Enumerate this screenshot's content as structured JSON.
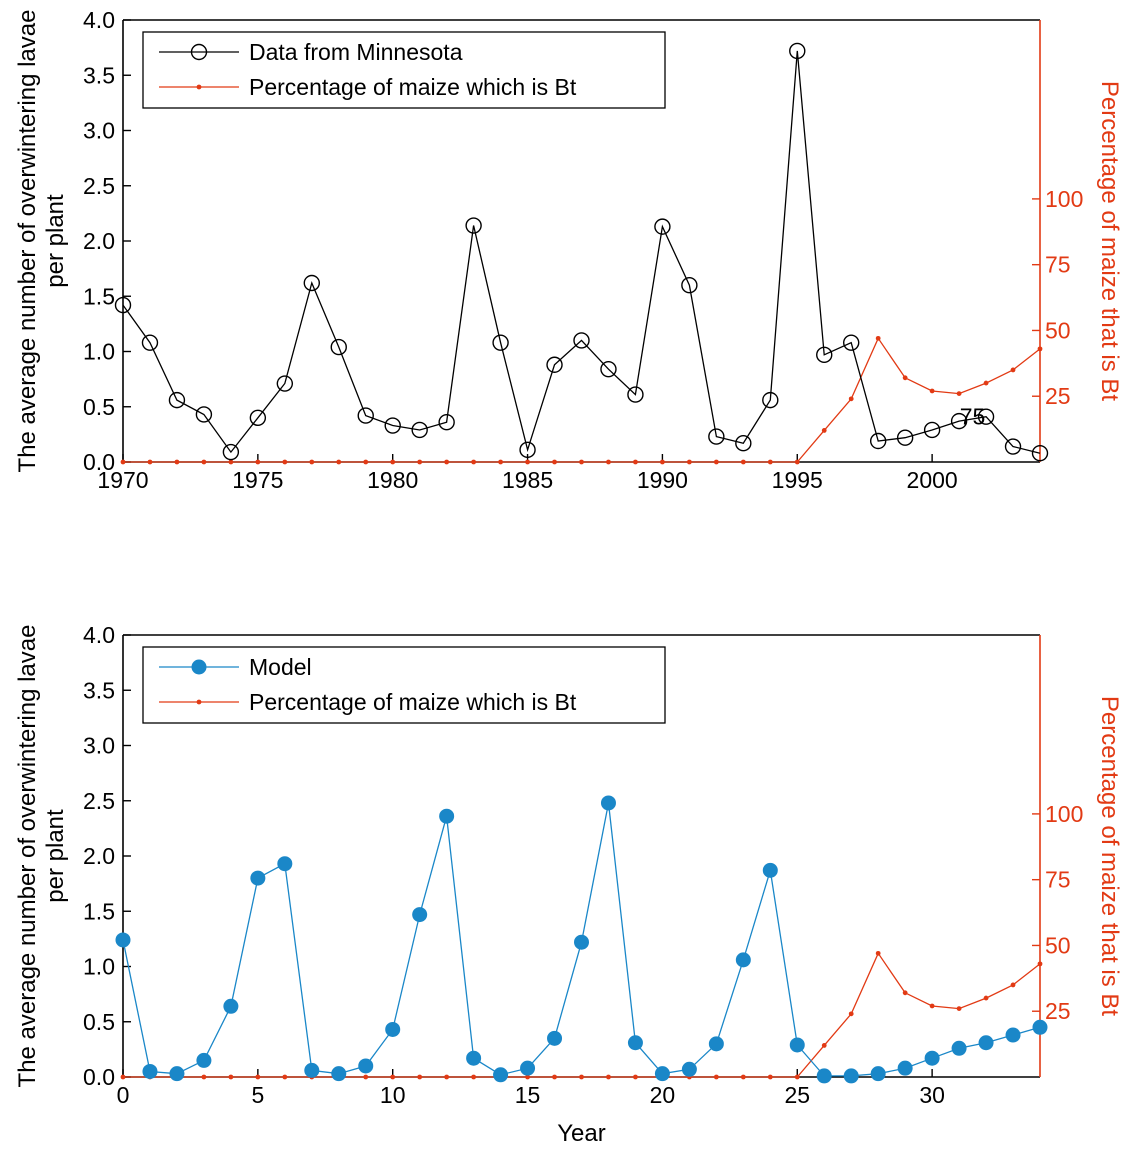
{
  "chart_data": [
    {
      "type": "line",
      "title": "",
      "xlabel": "",
      "ylabel": "The average number of overwintering lavae per plant",
      "y2label": "Percentage of maize that is Bt",
      "xlim": [
        1970,
        2004
      ],
      "ylim": [
        0,
        4
      ],
      "y2lim": [
        0,
        168
      ],
      "x_ticks": [
        1970,
        1975,
        1980,
        1985,
        1990,
        1995,
        2000
      ],
      "y_ticks": [
        "0.0",
        "0.5",
        "1.0",
        "1.5",
        "2.0",
        "2.5",
        "3.0",
        "3.5",
        "4.0"
      ],
      "y2_ticks": [
        25,
        50,
        75,
        100
      ],
      "legend_position": "top-left",
      "grid": false,
      "annotation": "75",
      "annotation_x": 2001.5,
      "annotation_y": 0.41,
      "series": [
        {
          "name": "Data from Minnesota",
          "axis": "left",
          "color": "#000000",
          "marker": "open-circle",
          "x": [
            1970,
            1971,
            1972,
            1973,
            1974,
            1975,
            1976,
            1977,
            1978,
            1979,
            1980,
            1981,
            1982,
            1983,
            1984,
            1985,
            1986,
            1987,
            1988,
            1989,
            1990,
            1991,
            1992,
            1993,
            1994,
            1995,
            1996,
            1997,
            1998,
            1999,
            2000,
            2001,
            2002,
            2003,
            2004
          ],
          "values": [
            1.42,
            1.08,
            0.56,
            0.43,
            0.09,
            0.4,
            0.71,
            1.62,
            1.04,
            0.42,
            0.33,
            0.29,
            0.36,
            2.14,
            1.08,
            0.11,
            0.88,
            1.1,
            0.84,
            0.61,
            2.13,
            1.6,
            0.23,
            0.17,
            0.56,
            3.72,
            0.97,
            1.08,
            0.19,
            0.22,
            0.29,
            0.37,
            0.41,
            0.14,
            0.08
          ]
        },
        {
          "name": "Percentage of maize which is Bt",
          "axis": "right",
          "color": "#e23a14",
          "marker": "dot",
          "x": [
            1970,
            1971,
            1972,
            1973,
            1974,
            1975,
            1976,
            1977,
            1978,
            1979,
            1980,
            1981,
            1982,
            1983,
            1984,
            1985,
            1986,
            1987,
            1988,
            1989,
            1990,
            1991,
            1992,
            1993,
            1994,
            1995,
            1996,
            1997,
            1998,
            1999,
            2000,
            2001,
            2002,
            2003,
            2004
          ],
          "values": [
            0,
            0,
            0,
            0,
            0,
            0,
            0,
            0,
            0,
            0,
            0,
            0,
            0,
            0,
            0,
            0,
            0,
            0,
            0,
            0,
            0,
            0,
            0,
            0,
            0,
            0,
            12,
            24,
            47,
            32,
            27,
            26,
            30,
            35,
            43
          ]
        }
      ]
    },
    {
      "type": "line",
      "title": "",
      "xlabel": "Year",
      "ylabel": "The average number of overwintering lavae per plant",
      "y2label": "Percentage of maize that is Bt",
      "xlim": [
        0,
        34
      ],
      "ylim": [
        0,
        4
      ],
      "y2lim": [
        0,
        168
      ],
      "x_ticks": [
        0,
        5,
        10,
        15,
        20,
        25,
        30
      ],
      "y_ticks": [
        "0.0",
        "0.5",
        "1.0",
        "1.5",
        "2.0",
        "2.5",
        "3.0",
        "3.5",
        "4.0"
      ],
      "y2_ticks": [
        25,
        50,
        75,
        100
      ],
      "legend_position": "top-left",
      "grid": false,
      "series": [
        {
          "name": "Model",
          "axis": "left",
          "color": "#1a87c8",
          "marker": "filled-circle",
          "x": [
            0,
            1,
            2,
            3,
            4,
            5,
            6,
            7,
            8,
            9,
            10,
            11,
            12,
            13,
            14,
            15,
            16,
            17,
            18,
            19,
            20,
            21,
            22,
            23,
            24,
            25,
            26,
            27,
            28,
            29,
            30,
            31,
            32,
            33,
            34
          ],
          "values": [
            1.24,
            0.05,
            0.03,
            0.15,
            0.64,
            1.8,
            1.93,
            0.06,
            0.03,
            0.1,
            0.43,
            1.47,
            2.36,
            0.17,
            0.02,
            0.08,
            0.35,
            1.22,
            2.48,
            0.31,
            0.03,
            0.07,
            0.3,
            1.06,
            1.87,
            0.29,
            0.01,
            0.01,
            0.03,
            0.08,
            0.17,
            0.26,
            0.31,
            0.38,
            0.45
          ]
        },
        {
          "name": "Percentage of maize which is Bt",
          "axis": "right",
          "color": "#e23a14",
          "marker": "dot",
          "x": [
            0,
            1,
            2,
            3,
            4,
            5,
            6,
            7,
            8,
            9,
            10,
            11,
            12,
            13,
            14,
            15,
            16,
            17,
            18,
            19,
            20,
            21,
            22,
            23,
            24,
            25,
            26,
            27,
            28,
            29,
            30,
            31,
            32,
            33,
            34
          ],
          "values": [
            0,
            0,
            0,
            0,
            0,
            0,
            0,
            0,
            0,
            0,
            0,
            0,
            0,
            0,
            0,
            0,
            0,
            0,
            0,
            0,
            0,
            0,
            0,
            0,
            0,
            0,
            12,
            24,
            47,
            32,
            27,
            26,
            30,
            35,
            43
          ]
        }
      ]
    }
  ]
}
